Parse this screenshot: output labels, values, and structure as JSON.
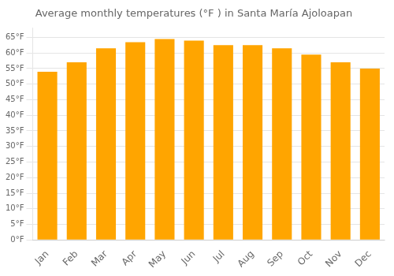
{
  "chart_data": {
    "type": "bar",
    "title": "Average monthly temperatures (°F ) in Santa María Ajoloapan",
    "categories": [
      "Jan",
      "Feb",
      "Mar",
      "Apr",
      "May",
      "Jun",
      "Jul",
      "Aug",
      "Sep",
      "Oct",
      "Nov",
      "Dec"
    ],
    "values": [
      54.0,
      57.0,
      61.5,
      63.5,
      64.5,
      64.0,
      62.5,
      62.5,
      61.5,
      59.5,
      57.0,
      55.0
    ],
    "color": "#FFA500",
    "ylim": [
      0,
      68
    ],
    "yticks": [
      {
        "value": 0,
        "label": "0°F"
      },
      {
        "value": 5,
        "label": "5°F"
      },
      {
        "value": 10,
        "label": "10°F"
      },
      {
        "value": 15,
        "label": "15°F"
      },
      {
        "value": 20,
        "label": "20°F"
      },
      {
        "value": 25,
        "label": "25°F"
      },
      {
        "value": 30,
        "label": "30°F"
      },
      {
        "value": 35,
        "label": "35°F"
      },
      {
        "value": 40,
        "label": "40°F"
      },
      {
        "value": 45,
        "label": "45°F"
      },
      {
        "value": 50,
        "label": "50°F"
      },
      {
        "value": 55,
        "label": "55°F"
      },
      {
        "value": 60,
        "label": "60°F"
      },
      {
        "value": 65,
        "label": "65°F"
      }
    ],
    "grid": true
  }
}
